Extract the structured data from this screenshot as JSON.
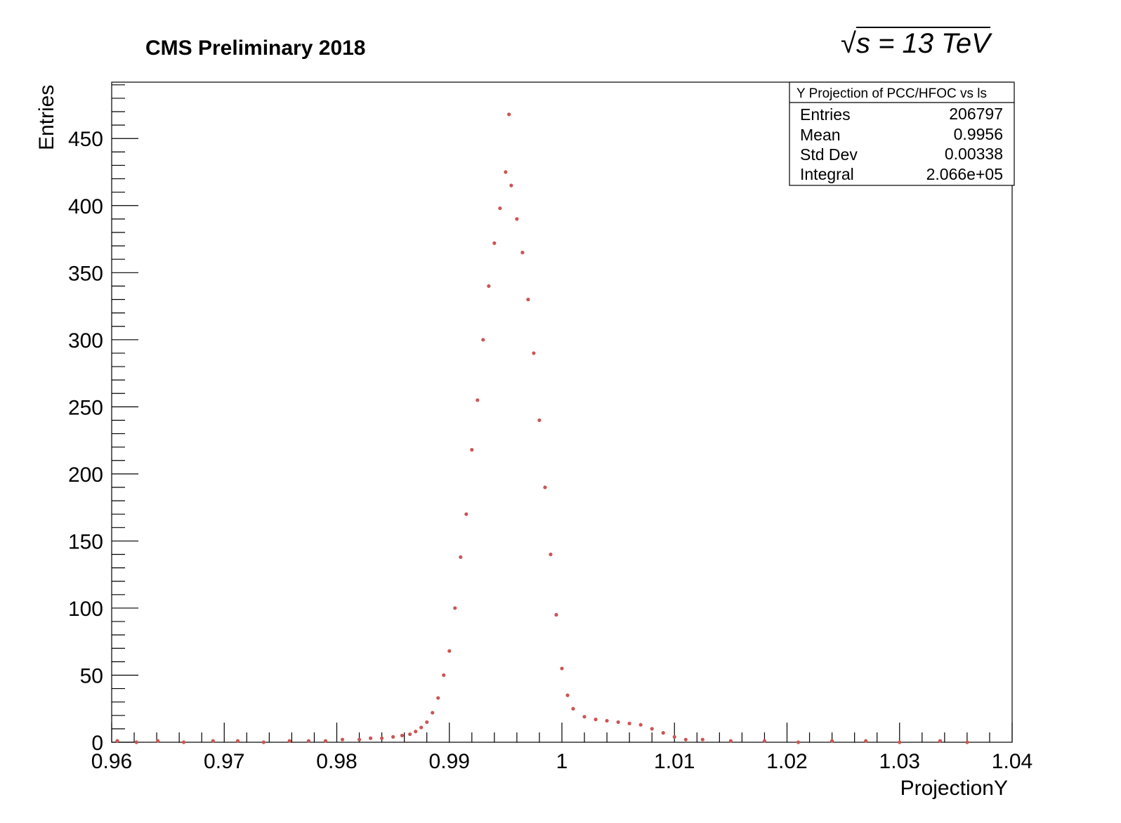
{
  "header": {
    "title": "CMS Preliminary 2018",
    "energy_label": "s = 13 TeV"
  },
  "stats_box": {
    "title": "Y Projection of PCC/HFOC vs ls",
    "rows": [
      {
        "label": "Entries",
        "value": "206797"
      },
      {
        "label": "Mean",
        "value": "0.9956"
      },
      {
        "label": "Std Dev",
        "value": "0.00338"
      },
      {
        "label": "Integral",
        "value": "2.066e+05"
      }
    ]
  },
  "chart_data": {
    "type": "scatter",
    "title": "CMS Preliminary 2018",
    "xlabel": "ProjectionY",
    "ylabel": "Entries",
    "xlim": [
      0.96,
      1.04
    ],
    "ylim": [
      0,
      492
    ],
    "x_ticks": [
      0.96,
      0.97,
      0.98,
      0.99,
      1.0,
      1.01,
      1.02,
      1.03,
      1.04
    ],
    "x_tick_labels": [
      "0.96",
      "0.97",
      "0.98",
      "0.99",
      "1",
      "1.01",
      "1.02",
      "1.03",
      "1.04"
    ],
    "y_ticks": [
      0,
      50,
      100,
      150,
      200,
      250,
      300,
      350,
      400,
      450
    ],
    "y_tick_labels": [
      "0",
      "50",
      "100",
      "150",
      "200",
      "250",
      "300",
      "350",
      "400",
      "450"
    ],
    "marker_color": "#cc5555",
    "series": [
      {
        "name": "Y Projection of PCC/HFOC vs ls",
        "points": [
          [
            0.9605,
            1
          ],
          [
            0.9622,
            0
          ],
          [
            0.9641,
            1
          ],
          [
            0.9664,
            0
          ],
          [
            0.969,
            1
          ],
          [
            0.9712,
            1
          ],
          [
            0.9735,
            0
          ],
          [
            0.9758,
            1
          ],
          [
            0.9775,
            1
          ],
          [
            0.979,
            1
          ],
          [
            0.9805,
            2
          ],
          [
            0.982,
            2
          ],
          [
            0.983,
            3
          ],
          [
            0.984,
            3
          ],
          [
            0.985,
            4
          ],
          [
            0.9858,
            5
          ],
          [
            0.9865,
            6
          ],
          [
            0.987,
            8
          ],
          [
            0.9875,
            11
          ],
          [
            0.988,
            15
          ],
          [
            0.9885,
            22
          ],
          [
            0.989,
            33
          ],
          [
            0.9895,
            50
          ],
          [
            0.99,
            68
          ],
          [
            0.9905,
            100
          ],
          [
            0.991,
            138
          ],
          [
            0.9915,
            170
          ],
          [
            0.992,
            218
          ],
          [
            0.9925,
            255
          ],
          [
            0.993,
            300
          ],
          [
            0.9935,
            340
          ],
          [
            0.994,
            372
          ],
          [
            0.9945,
            398
          ],
          [
            0.995,
            425
          ],
          [
            0.9953,
            468
          ],
          [
            0.9955,
            415
          ],
          [
            0.996,
            390
          ],
          [
            0.9965,
            365
          ],
          [
            0.997,
            330
          ],
          [
            0.9975,
            290
          ],
          [
            0.998,
            240
          ],
          [
            0.9985,
            190
          ],
          [
            0.999,
            140
          ],
          [
            0.9995,
            95
          ],
          [
            1.0,
            55
          ],
          [
            1.0005,
            35
          ],
          [
            1.001,
            25
          ],
          [
            1.002,
            19
          ],
          [
            1.003,
            17
          ],
          [
            1.004,
            16
          ],
          [
            1.005,
            15
          ],
          [
            1.006,
            14
          ],
          [
            1.007,
            13
          ],
          [
            1.008,
            10
          ],
          [
            1.009,
            7
          ],
          [
            1.01,
            4
          ],
          [
            1.011,
            2
          ],
          [
            1.0125,
            2
          ],
          [
            1.015,
            1
          ],
          [
            1.018,
            1
          ],
          [
            1.021,
            0
          ],
          [
            1.024,
            1
          ],
          [
            1.027,
            1
          ],
          [
            1.03,
            0
          ],
          [
            1.0336,
            1
          ],
          [
            1.036,
            0
          ]
        ]
      }
    ]
  }
}
